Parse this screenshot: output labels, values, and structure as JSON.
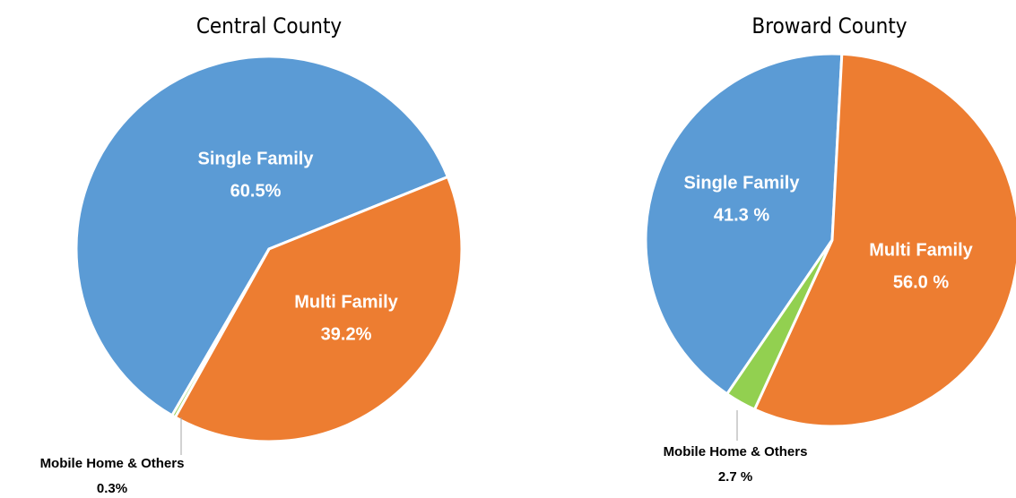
{
  "chart_data": [
    {
      "type": "pie",
      "title": "Central County",
      "categories": [
        "Single Family",
        "Multi Family",
        "Mobile Home & Others"
      ],
      "values": [
        60.5,
        39.2,
        0.3
      ],
      "value_labels": [
        "60.5%",
        "39.2%",
        "0.3%"
      ],
      "colors": [
        "#5b9bd5",
        "#ed7d31",
        "#92d050"
      ]
    },
    {
      "type": "pie",
      "title": "Broward County",
      "categories": [
        "Single Family",
        "Multi Family",
        "Mobile Home & Others"
      ],
      "values": [
        41.3,
        56.0,
        2.7
      ],
      "value_labels": [
        "41.3 %",
        "56.0 %",
        "2.7 %"
      ],
      "colors": [
        "#5b9bd5",
        "#ed7d31",
        "#92d050"
      ]
    }
  ]
}
